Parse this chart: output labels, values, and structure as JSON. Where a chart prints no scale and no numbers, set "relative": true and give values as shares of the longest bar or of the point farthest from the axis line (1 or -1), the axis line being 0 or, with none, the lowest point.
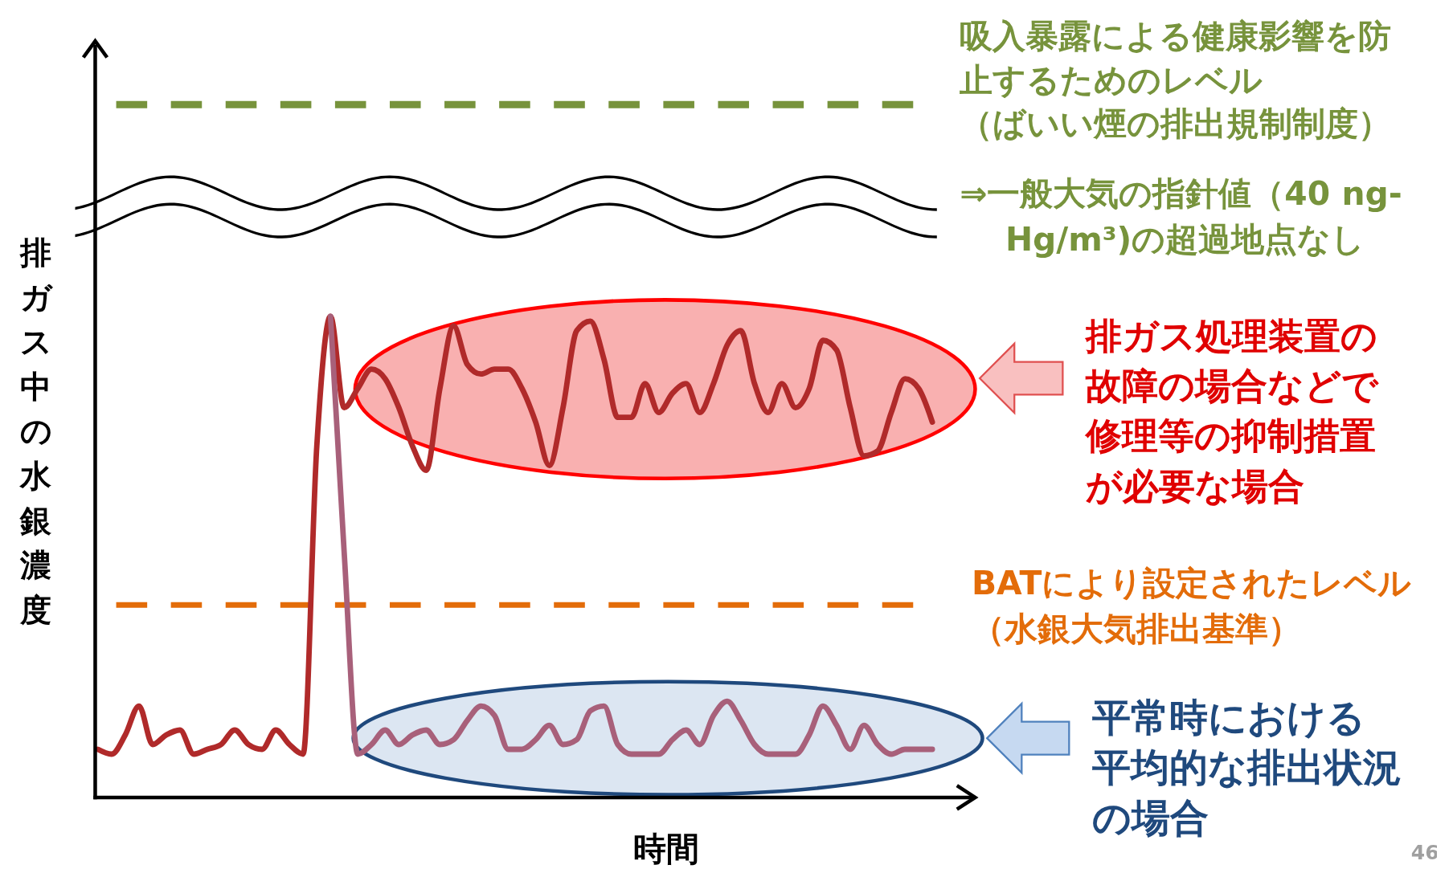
{
  "chart_data": {
    "type": "line",
    "relative": true,
    "xlabel": "時間",
    "ylabel": "排ガス中の水銀濃度",
    "legend": false,
    "grid": false,
    "marker": "none",
    "line_style": "solid",
    "categories": [
      null,
      null,
      null,
      null,
      null,
      null,
      null,
      null,
      null,
      null,
      null,
      null,
      null,
      null,
      null,
      null,
      null,
      null,
      null,
      null,
      null,
      null,
      null,
      null,
      null,
      null,
      null,
      null,
      null,
      null,
      null,
      null,
      null,
      null,
      null,
      null,
      null,
      null,
      null,
      null,
      null,
      null,
      null,
      null,
      null,
      null,
      null,
      null,
      null,
      null,
      null,
      null,
      null,
      null,
      null,
      null,
      null,
      null,
      null,
      null,
      null,
      null
    ],
    "series": [
      {
        "color": "#b02a2a",
        "values": [
          0.1,
          0.09,
          0.13,
          0.19,
          0.11,
          0.13,
          0.14,
          0.09,
          0.1,
          0.11,
          0.14,
          0.11,
          0.1,
          0.14,
          0.11,
          0.09,
          0.73,
          1.0,
          0.81,
          0.85,
          0.89,
          0.87,
          0.81,
          0.73,
          0.68,
          0.85,
          0.98,
          0.9,
          0.88,
          0.89,
          0.89,
          0.85,
          0.78,
          0.69,
          0.81,
          0.97,
          0.99,
          0.91,
          0.79,
          0.79,
          0.86,
          0.8,
          0.84,
          0.86,
          0.8,
          0.86,
          0.94,
          0.97,
          0.86,
          0.8,
          0.86,
          0.81,
          0.85,
          0.95,
          0.93,
          0.81,
          0.71,
          0.72,
          0.8,
          0.87,
          0.85,
          0.78
        ]
      },
      {
        "color": "#a8607a",
        "values": [
          null,
          null,
          null,
          null,
          null,
          null,
          null,
          null,
          null,
          null,
          null,
          null,
          null,
          null,
          null,
          null,
          null,
          1.0,
          0.51,
          0.09,
          0.11,
          0.14,
          0.11,
          0.13,
          0.14,
          0.11,
          0.12,
          0.16,
          0.19,
          0.17,
          0.1,
          0.1,
          0.12,
          0.15,
          0.11,
          0.12,
          0.18,
          0.19,
          0.11,
          0.09,
          0.09,
          0.09,
          0.12,
          0.14,
          0.11,
          0.17,
          0.2,
          0.16,
          0.11,
          0.09,
          0.09,
          0.09,
          0.13,
          0.19,
          0.15,
          0.1,
          0.15,
          0.11,
          0.09,
          0.1,
          0.1,
          0.1
        ]
      }
    ],
    "ref_lines": [
      {
        "axis": "y",
        "value": 1.44,
        "label": "吸入暴露による健康影響を防止するためのレベル（ばいい煙の排出規制制度）",
        "color": "#77933c",
        "line_style": "dashed"
      },
      {
        "axis": "y",
        "value": 0.4,
        "label": "BATにより設定されたレベル（水銀大気排出基準）",
        "color": "#e36c09",
        "line_style": "dashed"
      }
    ],
    "annotations": [
      "⇒一般大気の指針値（40 ng-Hg/m³)の超過地点なし",
      "排ガス処理装置の故障の場合などで修理等の抑制措置が必要な場合",
      "平常時における平均的な排出状況の場合",
      "46"
    ]
  }
}
